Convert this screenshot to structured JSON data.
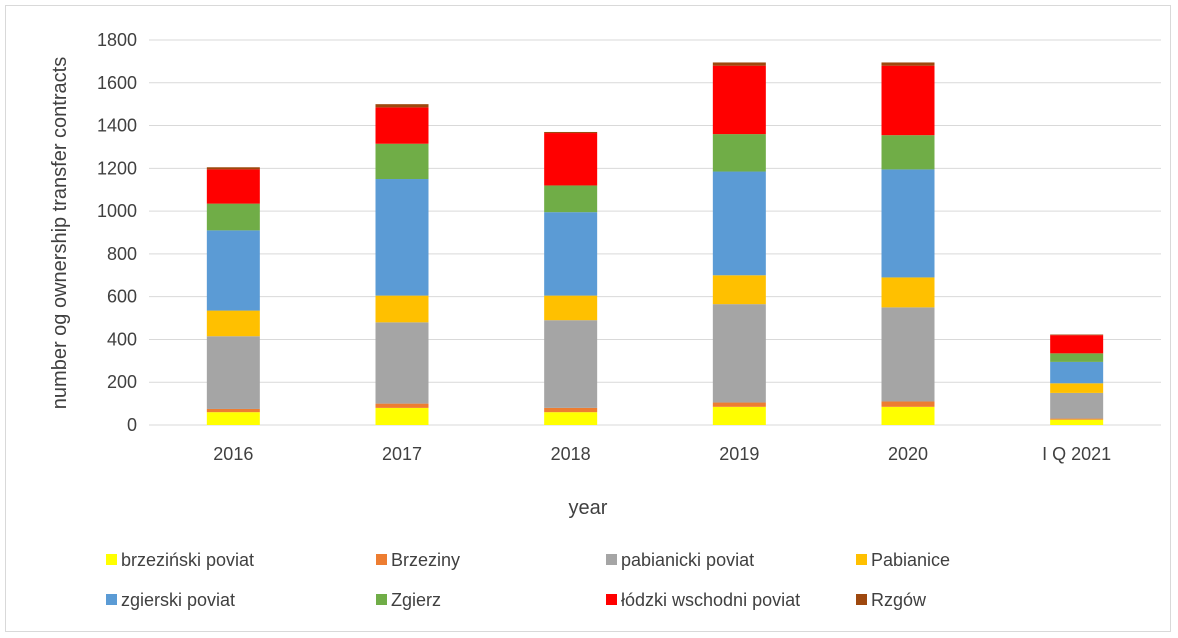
{
  "chart_data": {
    "type": "bar",
    "stacked": true,
    "xlabel": "year",
    "ylabel": "number og ownership transfer contracts",
    "ylim": [
      0,
      1800
    ],
    "yticks": [
      0,
      200,
      400,
      600,
      800,
      1000,
      1200,
      1400,
      1600,
      1800
    ],
    "grid": true,
    "legend_position": "bottom",
    "categories": [
      "2016",
      "2017",
      "2018",
      "2019",
      "2020",
      "I Q 2021"
    ],
    "series": [
      {
        "name": "brzeziński poviat",
        "color": "#ffff00",
        "values": [
          60,
          80,
          60,
          85,
          85,
          25
        ]
      },
      {
        "name": "Brzeziny",
        "color": "#ed7d31",
        "values": [
          15,
          20,
          20,
          20,
          25,
          5
        ]
      },
      {
        "name": "pabianicki poviat",
        "color": "#a5a5a5",
        "values": [
          340,
          380,
          410,
          460,
          440,
          120
        ]
      },
      {
        "name": "Pabianice",
        "color": "#ffc000",
        "values": [
          120,
          125,
          115,
          135,
          140,
          45
        ]
      },
      {
        "name": "zgierski poviat",
        "color": "#5b9bd5",
        "values": [
          375,
          545,
          390,
          485,
          505,
          100
        ]
      },
      {
        "name": "Zgierz",
        "color": "#70ad47",
        "values": [
          125,
          165,
          125,
          175,
          160,
          40
        ]
      },
      {
        "name": "łódzki wschodni poviat",
        "color": "#ff0000",
        "values": [
          160,
          170,
          245,
          320,
          325,
          85
        ]
      },
      {
        "name": "Rzgów",
        "color": "#9e480e",
        "values": [
          10,
          15,
          5,
          15,
          15,
          3
        ]
      }
    ]
  }
}
